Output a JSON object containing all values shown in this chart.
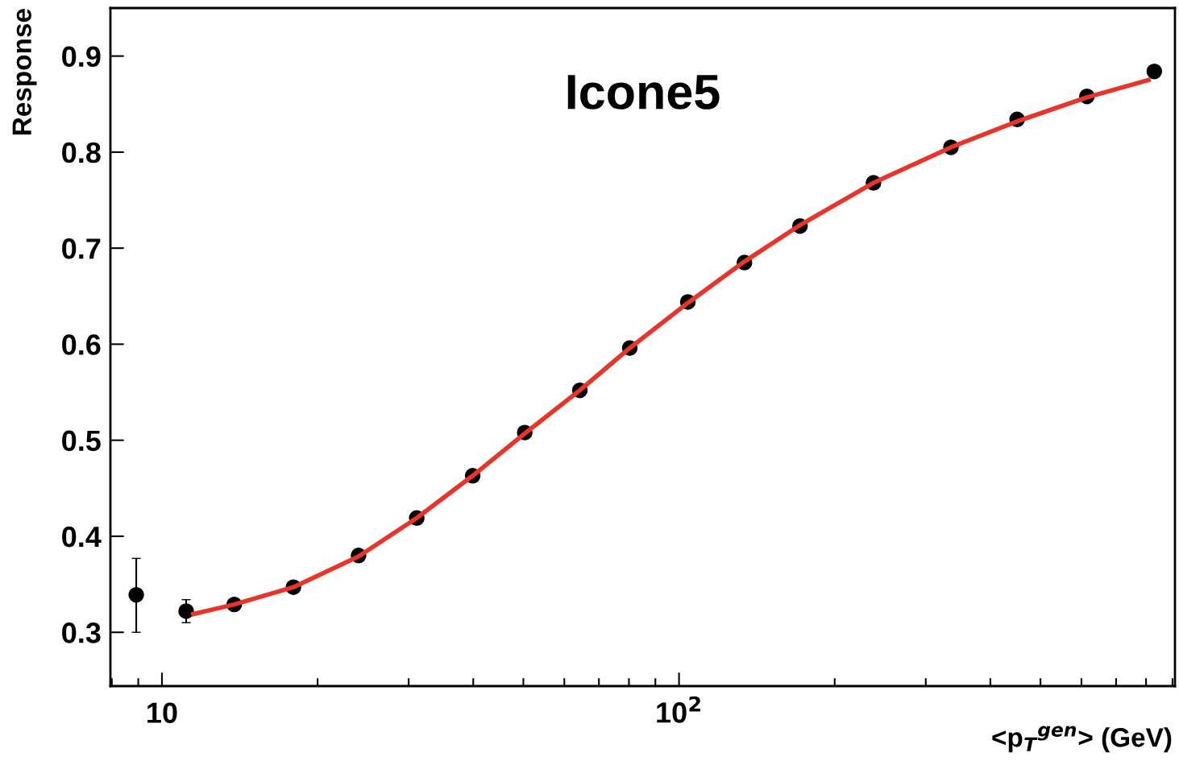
{
  "chart_data": {
    "type": "scatter",
    "title": "Icone5",
    "xlabel": "<p$_{T}$$^{gen}$> (GeV)",
    "ylabel": "Response",
    "log": "x",
    "grid": false,
    "legend": false,
    "marker": "circle",
    "xlim": [
      7.95,
      910
    ],
    "ylim": [
      0.244,
      0.95
    ],
    "xticks": [
      {
        "value": 8,
        "label": null
      },
      {
        "value": 9,
        "label": null
      },
      10,
      {
        "value": 20,
        "label": null
      },
      {
        "value": 30,
        "label": null
      },
      {
        "value": 40,
        "label": null
      },
      {
        "value": 50,
        "label": null
      },
      {
        "value": 60,
        "label": null
      },
      {
        "value": 70,
        "label": null
      },
      {
        "value": 80,
        "label": null
      },
      {
        "value": 90,
        "label": null
      },
      {
        "value": 100,
        "label": "10$^{2}$"
      },
      {
        "value": 200,
        "label": null
      },
      {
        "value": 300,
        "label": null
      },
      {
        "value": 400,
        "label": null
      },
      {
        "value": 500,
        "label": null
      },
      {
        "value": 600,
        "label": null
      },
      {
        "value": 700,
        "label": null
      },
      {
        "value": 800,
        "label": null
      },
      {
        "value": 900,
        "label": null
      }
    ],
    "yticks": [
      0.3,
      0.4,
      0.5,
      0.6,
      0.7,
      0.8,
      0.9
    ],
    "series": [
      {
        "color": "#000000",
        "x": [
          8.92,
          11.14,
          13.8,
          17.96,
          24.0,
          31.1,
          39.9,
          50.3,
          64.3,
          80.3,
          104,
          133.8,
          171.4,
          237.7,
          335.6,
          450.6,
          615,
          830
        ],
        "values": [
          0.339,
          0.322,
          0.329,
          0.347,
          0.38,
          0.419,
          0.463,
          0.508,
          0.552,
          0.596,
          0.644,
          0.685,
          0.723,
          0.768,
          0.805,
          0.834,
          0.858,
          0.884
        ],
        "errors": [
          [
            0.3,
            0.377
          ],
          [
            0.31,
            0.334
          ],
          null,
          null,
          null,
          null,
          null,
          null,
          null,
          null,
          null,
          null,
          null,
          null,
          null,
          null,
          null,
          null
        ]
      },
      {
        "type": "line",
        "color": "#e8342a",
        "marker": "none",
        "line_style": "solid",
        "x": [
          11.5,
          13.8,
          17.96,
          24.0,
          31.1,
          39.9,
          50.3,
          64.3,
          80.3,
          104,
          133.8,
          171.4,
          237.7,
          335.6,
          450.6,
          615,
          809
        ],
        "values": [
          0.319,
          0.329,
          0.347,
          0.379,
          0.419,
          0.463,
          0.507,
          0.552,
          0.596,
          0.643,
          0.686,
          0.724,
          0.768,
          0.805,
          0.832,
          0.857,
          0.875
        ]
      }
    ]
  }
}
